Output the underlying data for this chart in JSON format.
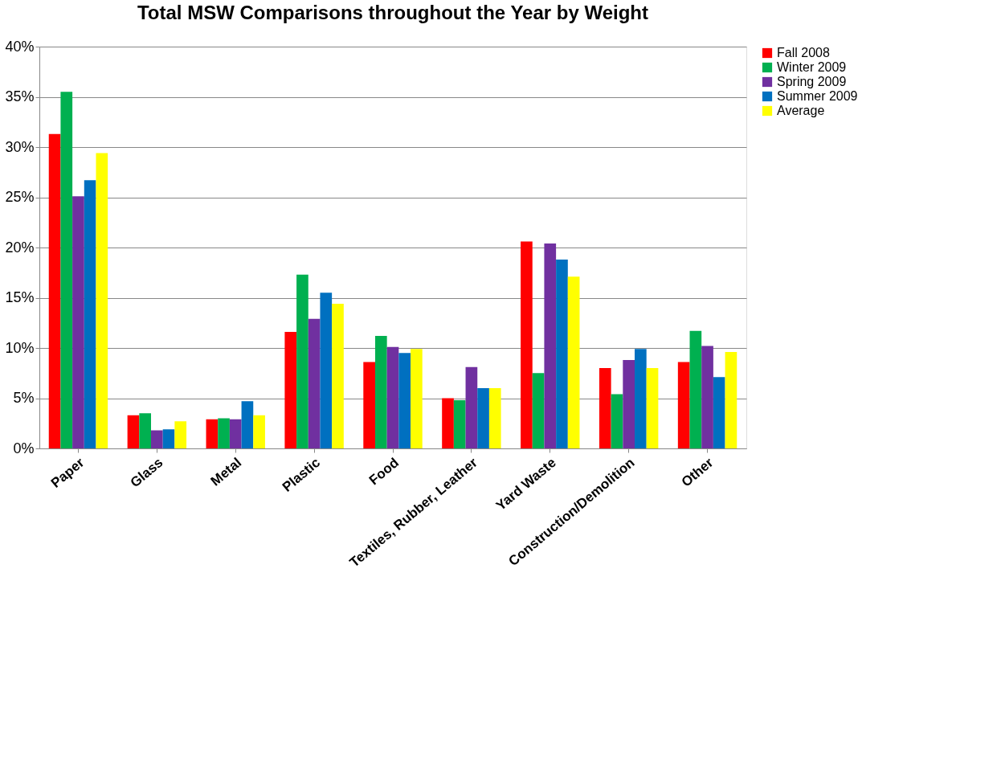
{
  "chart_data": {
    "type": "bar",
    "title": "Total MSW Comparisons throughout the Year by Weight",
    "categories": [
      "Paper",
      "Glass",
      "Metal",
      "Plastic",
      "Food",
      "Textiles, Rubber, Leather",
      "Yard Waste",
      "Construction/Demolition",
      "Other"
    ],
    "series": [
      {
        "name": "Fall 2008",
        "color": "#ff0000",
        "values": [
          31.3,
          3.3,
          2.9,
          11.6,
          8.6,
          5.0,
          20.6,
          8.0,
          8.6
        ]
      },
      {
        "name": "Winter  2009",
        "color": "#00b050",
        "values": [
          35.5,
          3.5,
          3.0,
          17.3,
          11.2,
          4.8,
          7.5,
          5.4,
          11.7
        ]
      },
      {
        "name": "Spring 2009",
        "color": "#7030a0",
        "values": [
          25.1,
          1.8,
          2.9,
          12.9,
          10.1,
          8.1,
          20.4,
          8.8,
          10.2
        ]
      },
      {
        "name": "Summer 2009",
        "color": "#0070c0",
        "values": [
          26.7,
          1.9,
          4.7,
          15.5,
          9.5,
          6.0,
          18.8,
          9.9,
          7.1
        ]
      },
      {
        "name": "Average",
        "color": "#ffff00",
        "values": [
          29.4,
          2.7,
          3.3,
          14.4,
          9.9,
          6.0,
          17.1,
          8.0,
          9.6
        ]
      }
    ],
    "ylim": [
      0,
      40
    ],
    "yticks": [
      {
        "value": 0,
        "label": "0%"
      },
      {
        "value": 5,
        "label": "5%"
      },
      {
        "value": 10,
        "label": "10%"
      },
      {
        "value": 15,
        "label": "15%"
      },
      {
        "value": 20,
        "label": "20%"
      },
      {
        "value": 25,
        "label": "25%"
      },
      {
        "value": 30,
        "label": "30%"
      },
      {
        "value": 35,
        "label": "35%"
      },
      {
        "value": 40,
        "label": "40%"
      }
    ],
    "grid": "y",
    "legend": "right"
  }
}
